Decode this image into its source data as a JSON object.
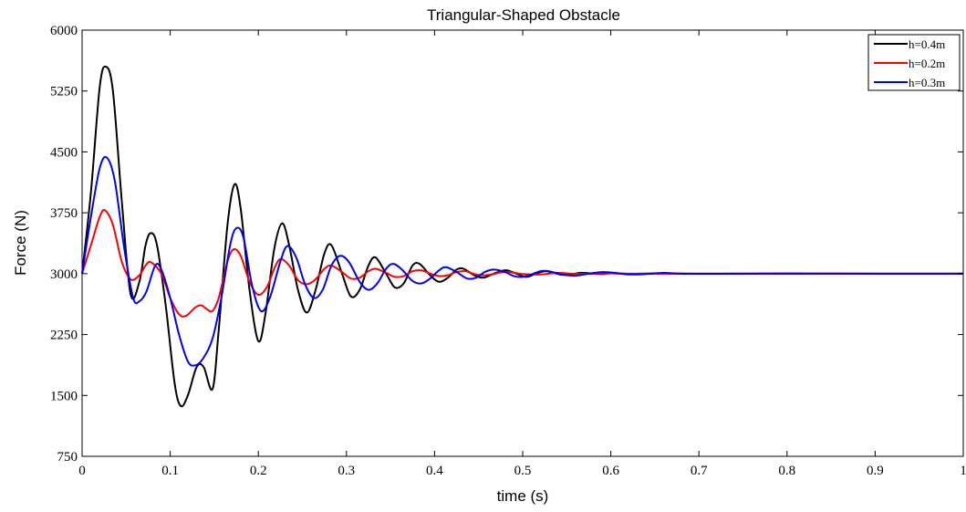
{
  "chart_data": {
    "type": "line",
    "title": "Triangular-Shaped Obstacle",
    "xlabel": "time (s)",
    "ylabel": "Force (N)",
    "xlim": [
      0,
      1
    ],
    "ylim": [
      750,
      6000
    ],
    "xticks": [
      0,
      0.1,
      0.2,
      0.3,
      0.4,
      0.5,
      0.6,
      0.7,
      0.8,
      0.9,
      1
    ],
    "xtick_labels": [
      "0",
      "0.1",
      "0.2",
      "0.3",
      "0.4",
      "0.5",
      "0.6",
      "0.7",
      "0.8",
      "0.9",
      "1"
    ],
    "yticks": [
      750,
      1500,
      2250,
      3000,
      3750,
      4500,
      5250,
      6000
    ],
    "ytick_labels": [
      "750",
      "1500",
      "2250",
      "3000",
      "3750",
      "4500",
      "5250",
      "6000"
    ],
    "grid": false,
    "legend_position": "top-right",
    "series": [
      {
        "name": "h=0.4m",
        "color": "#000000",
        "points": [
          [
            0,
            3000
          ],
          [
            0.01,
            4000
          ],
          [
            0.02,
            5300
          ],
          [
            0.027,
            5550
          ],
          [
            0.035,
            5250
          ],
          [
            0.045,
            3900
          ],
          [
            0.055,
            2750
          ],
          [
            0.065,
            2900
          ],
          [
            0.072,
            3350
          ],
          [
            0.078,
            3500
          ],
          [
            0.085,
            3350
          ],
          [
            0.095,
            2600
          ],
          [
            0.105,
            1650
          ],
          [
            0.112,
            1370
          ],
          [
            0.12,
            1500
          ],
          [
            0.13,
            1850
          ],
          [
            0.138,
            1850
          ],
          [
            0.148,
            1580
          ],
          [
            0.155,
            2300
          ],
          [
            0.165,
            3600
          ],
          [
            0.173,
            4100
          ],
          [
            0.18,
            3800
          ],
          [
            0.19,
            2800
          ],
          [
            0.2,
            2170
          ],
          [
            0.208,
            2500
          ],
          [
            0.218,
            3300
          ],
          [
            0.227,
            3620
          ],
          [
            0.235,
            3350
          ],
          [
            0.245,
            2800
          ],
          [
            0.255,
            2520
          ],
          [
            0.265,
            2800
          ],
          [
            0.275,
            3250
          ],
          [
            0.283,
            3350
          ],
          [
            0.295,
            3000
          ],
          [
            0.305,
            2720
          ],
          [
            0.315,
            2800
          ],
          [
            0.325,
            3100
          ],
          [
            0.333,
            3200
          ],
          [
            0.345,
            3000
          ],
          [
            0.355,
            2830
          ],
          [
            0.365,
            2880
          ],
          [
            0.375,
            3100
          ],
          [
            0.383,
            3120
          ],
          [
            0.395,
            2980
          ],
          [
            0.405,
            2900
          ],
          [
            0.415,
            2950
          ],
          [
            0.425,
            3050
          ],
          [
            0.433,
            3060
          ],
          [
            0.445,
            2980
          ],
          [
            0.455,
            2950
          ],
          [
            0.465,
            2990
          ],
          [
            0.475,
            3030
          ],
          [
            0.483,
            3040
          ],
          [
            0.495,
            2990
          ],
          [
            0.505,
            2960
          ],
          [
            0.515,
            3000
          ],
          [
            0.525,
            3030
          ],
          [
            0.535,
            3010
          ],
          [
            0.545,
            2985
          ],
          [
            0.555,
            2990
          ],
          [
            0.565,
            3010
          ],
          [
            0.575,
            3005
          ],
          [
            0.59,
            2995
          ],
          [
            0.6,
            3005
          ],
          [
            0.62,
            2998
          ],
          [
            0.65,
            3003
          ],
          [
            0.7,
            3000
          ],
          [
            0.8,
            3000
          ],
          [
            1.0,
            3000
          ]
        ]
      },
      {
        "name": "h=0.2m",
        "color": "#ff0000",
        "points": [
          [
            0,
            3000
          ],
          [
            0.01,
            3350
          ],
          [
            0.02,
            3700
          ],
          [
            0.026,
            3780
          ],
          [
            0.035,
            3600
          ],
          [
            0.045,
            3150
          ],
          [
            0.055,
            2930
          ],
          [
            0.065,
            2980
          ],
          [
            0.072,
            3100
          ],
          [
            0.078,
            3140
          ],
          [
            0.09,
            3000
          ],
          [
            0.1,
            2700
          ],
          [
            0.11,
            2500
          ],
          [
            0.118,
            2480
          ],
          [
            0.128,
            2580
          ],
          [
            0.135,
            2610
          ],
          [
            0.142,
            2560
          ],
          [
            0.148,
            2540
          ],
          [
            0.155,
            2700
          ],
          [
            0.165,
            3150
          ],
          [
            0.172,
            3300
          ],
          [
            0.18,
            3220
          ],
          [
            0.19,
            2900
          ],
          [
            0.2,
            2740
          ],
          [
            0.21,
            2840
          ],
          [
            0.218,
            3060
          ],
          [
            0.225,
            3180
          ],
          [
            0.235,
            3100
          ],
          [
            0.245,
            2920
          ],
          [
            0.255,
            2870
          ],
          [
            0.265,
            2930
          ],
          [
            0.275,
            3060
          ],
          [
            0.283,
            3100
          ],
          [
            0.295,
            3020
          ],
          [
            0.305,
            2940
          ],
          [
            0.315,
            2950
          ],
          [
            0.325,
            3030
          ],
          [
            0.333,
            3060
          ],
          [
            0.345,
            3010
          ],
          [
            0.355,
            2960
          ],
          [
            0.365,
            2970
          ],
          [
            0.375,
            3030
          ],
          [
            0.385,
            3040
          ],
          [
            0.395,
            3000
          ],
          [
            0.405,
            2970
          ],
          [
            0.415,
            2980
          ],
          [
            0.425,
            3020
          ],
          [
            0.435,
            3030
          ],
          [
            0.445,
            2995
          ],
          [
            0.455,
            2980
          ],
          [
            0.465,
            2990
          ],
          [
            0.475,
            3015
          ],
          [
            0.485,
            3020
          ],
          [
            0.5,
            2995
          ],
          [
            0.52,
            2990
          ],
          [
            0.54,
            3010
          ],
          [
            0.56,
            2998
          ],
          [
            0.6,
            3003
          ],
          [
            0.65,
            3000
          ],
          [
            1.0,
            3000
          ]
        ]
      },
      {
        "name": "h=0.3m",
        "color": "#0000ff",
        "points": [
          [
            0,
            3000
          ],
          [
            0.01,
            3700
          ],
          [
            0.02,
            4300
          ],
          [
            0.028,
            4430
          ],
          [
            0.037,
            4150
          ],
          [
            0.048,
            3300
          ],
          [
            0.058,
            2700
          ],
          [
            0.065,
            2660
          ],
          [
            0.073,
            2780
          ],
          [
            0.083,
            3100
          ],
          [
            0.09,
            3050
          ],
          [
            0.1,
            2700
          ],
          [
            0.11,
            2250
          ],
          [
            0.12,
            1920
          ],
          [
            0.128,
            1870
          ],
          [
            0.137,
            1950
          ],
          [
            0.148,
            2200
          ],
          [
            0.158,
            2700
          ],
          [
            0.168,
            3350
          ],
          [
            0.175,
            3560
          ],
          [
            0.183,
            3450
          ],
          [
            0.193,
            2850
          ],
          [
            0.203,
            2540
          ],
          [
            0.213,
            2700
          ],
          [
            0.225,
            3150
          ],
          [
            0.233,
            3340
          ],
          [
            0.243,
            3200
          ],
          [
            0.253,
            2870
          ],
          [
            0.263,
            2700
          ],
          [
            0.273,
            2800
          ],
          [
            0.283,
            3100
          ],
          [
            0.293,
            3220
          ],
          [
            0.303,
            3140
          ],
          [
            0.315,
            2900
          ],
          [
            0.325,
            2800
          ],
          [
            0.335,
            2880
          ],
          [
            0.345,
            3060
          ],
          [
            0.353,
            3120
          ],
          [
            0.363,
            3050
          ],
          [
            0.375,
            2910
          ],
          [
            0.385,
            2880
          ],
          [
            0.395,
            2940
          ],
          [
            0.405,
            3040
          ],
          [
            0.413,
            3080
          ],
          [
            0.425,
            3020
          ],
          [
            0.437,
            2940
          ],
          [
            0.447,
            2950
          ],
          [
            0.457,
            3020
          ],
          [
            0.467,
            3050
          ],
          [
            0.48,
            3020
          ],
          [
            0.49,
            2970
          ],
          [
            0.5,
            2960
          ],
          [
            0.51,
            2990
          ],
          [
            0.52,
            3030
          ],
          [
            0.53,
            3030
          ],
          [
            0.545,
            2990
          ],
          [
            0.56,
            2975
          ],
          [
            0.575,
            3000
          ],
          [
            0.59,
            3020
          ],
          [
            0.605,
            3010
          ],
          [
            0.62,
            2990
          ],
          [
            0.64,
            2995
          ],
          [
            0.66,
            3010
          ],
          [
            0.68,
            3000
          ],
          [
            0.72,
            2998
          ],
          [
            0.8,
            3002
          ],
          [
            0.9,
            3000
          ],
          [
            1.0,
            3000
          ]
        ]
      }
    ]
  }
}
